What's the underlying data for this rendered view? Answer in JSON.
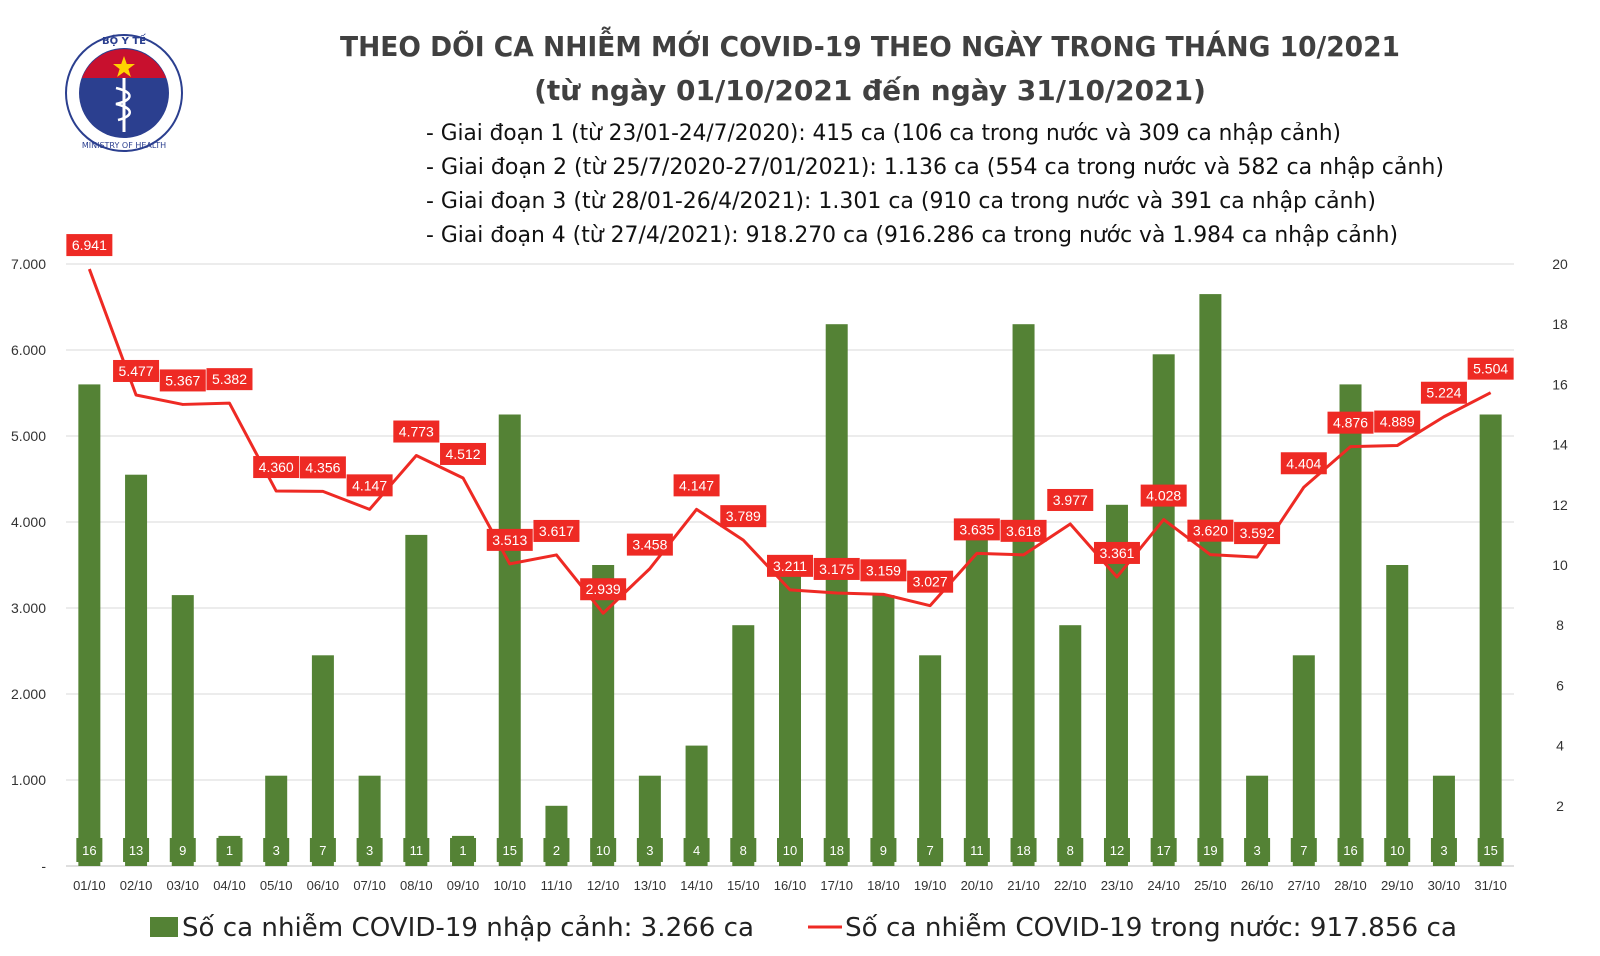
{
  "title": "THEO DÕI CA NHIỄM MỚI COVID-19 THEO NGÀY TRONG THÁNG 10/2021",
  "subtitle": "(từ ngày 01/10/2021 đến ngày 31/10/2021)",
  "logo": {
    "top_text": "BỘ Y TẾ",
    "bottom_text": "MINISTRY OF HEALTH"
  },
  "notes": [
    "- Giai đoạn 1 (từ 23/01-24/7/2020): 415 ca (106 ca trong nước và 309 ca nhập cảnh)",
    "- Giai đoạn 2 (từ 25/7/2020-27/01/2021): 1.136 ca (554 ca trong nước và 582 ca nhập cảnh)",
    "- Giai đoạn 3 (từ 28/01-26/4/2021): 1.301 ca (910 ca trong nước và 391 ca nhập cảnh)",
    "- Giai đoạn 4 (từ 27/4/2021): 918.270 ca (916.286 ca trong nước và 1.984 ca nhập cảnh)"
  ],
  "colors": {
    "bar": "#548235",
    "line": "#ee2a24",
    "label_bg": "#ee2a24",
    "title": "#404040"
  },
  "chart_data": {
    "type": "bar+line",
    "categories": [
      "01/10",
      "02/10",
      "03/10",
      "04/10",
      "05/10",
      "06/10",
      "07/10",
      "08/10",
      "09/10",
      "10/10",
      "11/10",
      "12/10",
      "13/10",
      "14/10",
      "15/10",
      "16/10",
      "17/10",
      "18/10",
      "19/10",
      "20/10",
      "21/10",
      "22/10",
      "23/10",
      "24/10",
      "25/10",
      "26/10",
      "27/10",
      "28/10",
      "29/10",
      "30/10",
      "31/10"
    ],
    "series": [
      {
        "name": "Số ca nhiễm COVID-19 nhập cảnh: 3.266 ca",
        "type": "bar",
        "axis": "right",
        "values": [
          16,
          13,
          9,
          1,
          3,
          7,
          3,
          11,
          1,
          15,
          2,
          10,
          3,
          4,
          8,
          10,
          18,
          9,
          7,
          11,
          18,
          8,
          12,
          17,
          19,
          3,
          7,
          16,
          10,
          3,
          15
        ],
        "labels": [
          "16",
          "13",
          "9",
          "1",
          "3",
          "7",
          "3",
          "11",
          "1",
          "15",
          "2",
          "10",
          "3",
          "4",
          "8",
          "10",
          "18",
          "9",
          "7",
          "11",
          "18",
          "8",
          "12",
          "17",
          "19",
          "3",
          "7",
          "16",
          "10",
          "3",
          "15"
        ]
      },
      {
        "name": "Số ca nhiễm COVID-19 trong nước: 917.856 ca",
        "type": "line",
        "axis": "left",
        "values": [
          6941,
          5477,
          5367,
          5382,
          4360,
          4356,
          4147,
          4773,
          4512,
          3513,
          3617,
          2939,
          3458,
          4147,
          3789,
          3211,
          3175,
          3159,
          3027,
          3635,
          3618,
          3977,
          3361,
          4028,
          3620,
          3592,
          4404,
          4876,
          4889,
          5224,
          5504
        ],
        "labels": [
          "6.941",
          "5.477",
          "5.367",
          "5.382",
          "4.360",
          "4.356",
          "4.147",
          "4.773",
          "4.512",
          "3.513",
          "3.617",
          "2.939",
          "3.458",
          "4.147",
          "3.789",
          "3.211",
          "3.175",
          "3.159",
          "3.027",
          "3.635",
          "3.618",
          "3.977",
          "3.361",
          "4.028",
          "3.620",
          "3.592",
          "4.404",
          "4.876",
          "4.889",
          "5.224",
          "5.504"
        ]
      }
    ],
    "left_axis": {
      "ylim": [
        0,
        7000
      ],
      "ticks": [
        0,
        1000,
        2000,
        3000,
        4000,
        5000,
        6000,
        7000
      ],
      "tick_labels": [
        "-",
        "1.000",
        "2.000",
        "3.000",
        "4.000",
        "5.000",
        "6.000",
        "7.000"
      ]
    },
    "right_axis": {
      "ylim": [
        0,
        20
      ],
      "ticks": [
        2,
        4,
        6,
        8,
        10,
        12,
        14,
        16,
        18,
        20
      ],
      "tick_labels": [
        "2",
        "4",
        "6",
        "8",
        "10",
        "12",
        "14",
        "16",
        "18",
        "20"
      ]
    },
    "grid": true,
    "legend_position": "bottom"
  }
}
